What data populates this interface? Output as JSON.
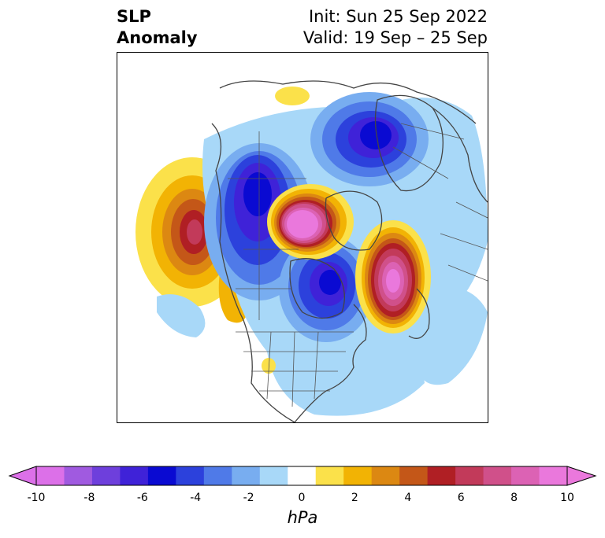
{
  "title": {
    "left_line1": "SLP",
    "left_line2": "Anomaly",
    "right_line1": "Init: Sun 25 Sep 2022",
    "right_line2": "Valid: 19 Sep – 25 Sep"
  },
  "colorbar": {
    "units": "hPa",
    "ticks": [
      "-10",
      "-8",
      "-6",
      "-4",
      "-2",
      "0",
      "2",
      "4",
      "6",
      "8",
      "10"
    ],
    "colors": [
      "#dc70e8",
      "#a05ae0",
      "#6e3fdc",
      "#3f22d8",
      "#0a0ad2",
      "#2c41dc",
      "#4f7ae8",
      "#78adf0",
      "#a8d8f8",
      "#ffffff",
      "#fbe14a",
      "#f2b304",
      "#dc8812",
      "#c45718",
      "#b01f24",
      "#c23a5a",
      "#d0508a",
      "#dc62b4",
      "#ea78dc"
    ],
    "extend_min_color": "#dc70e8",
    "extend_max_color": "#ea78dc"
  },
  "map": {
    "projection": "north-polar",
    "lobes": [
      {
        "region": "gulf-of-alaska",
        "sign": "positive",
        "peak_hpa": 7
      },
      {
        "region": "arctic-greenland",
        "sign": "positive",
        "peak_hpa": 10
      },
      {
        "region": "north-atlantic",
        "sign": "positive",
        "peak_hpa": 10
      },
      {
        "region": "western-canada",
        "sign": "negative",
        "peak_hpa": -6
      },
      {
        "region": "hudson-bay",
        "sign": "negative",
        "peak_hpa": -6
      },
      {
        "region": "northern-russia",
        "sign": "negative",
        "peak_hpa": -6
      }
    ]
  }
}
